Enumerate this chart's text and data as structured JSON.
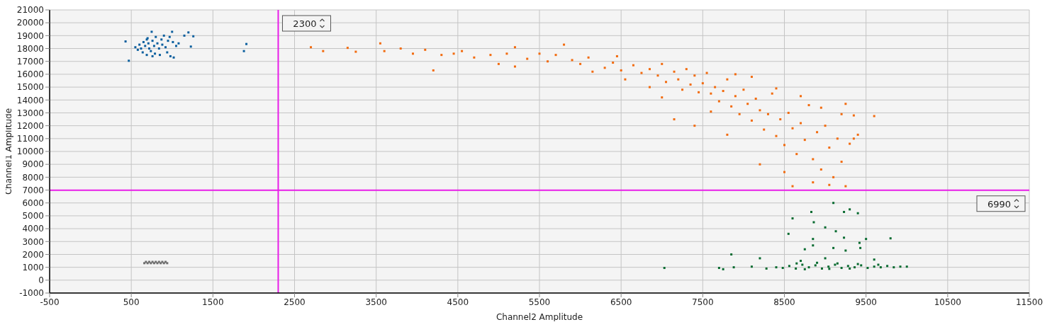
{
  "chart_data": {
    "type": "scatter",
    "xlabel": "Channel2 Amplitude",
    "ylabel": "Channel1 Amplitude",
    "xlim": [
      -500,
      11500
    ],
    "xticks": [
      -500,
      500,
      1500,
      2500,
      3500,
      4500,
      5500,
      6500,
      7500,
      8500,
      9500,
      10500,
      11500
    ],
    "ylim": [
      -1000,
      21000
    ],
    "yticks": [
      -1000,
      0,
      1000,
      2000,
      3000,
      4000,
      5000,
      6000,
      7000,
      8000,
      9000,
      10000,
      11000,
      12000,
      13000,
      14000,
      15000,
      16000,
      17000,
      18000,
      19000,
      20000,
      21000
    ],
    "grid": true,
    "marker": "square",
    "ref_lines": [
      {
        "axis": "x",
        "value": 2300,
        "label": "2300",
        "color": "#e81ee8"
      },
      {
        "axis": "y",
        "value": 6990,
        "label": "6990",
        "color": "#e81ee8"
      }
    ],
    "series": [
      {
        "color": "#0b5f9e",
        "x": [
          430,
          470,
          550,
          580,
          600,
          620,
          640,
          650,
          670,
          690,
          700,
          710,
          720,
          740,
          750,
          760,
          780,
          790,
          800,
          820,
          840,
          850,
          870,
          880,
          900,
          920,
          940,
          950,
          970,
          980,
          1000,
          1010,
          1020,
          1050,
          1080,
          1150,
          1200,
          1260,
          1230,
          1880,
          1910,
          760,
          690
        ],
        "values": [
          18550,
          17050,
          18100,
          17900,
          18300,
          18000,
          17700,
          18500,
          18200,
          17500,
          18800,
          18400,
          18000,
          17800,
          19300,
          18600,
          18200,
          17600,
          18900,
          18400,
          18000,
          17500,
          18700,
          18300,
          19000,
          18100,
          17700,
          18600,
          18900,
          17400,
          19300,
          18500,
          17300,
          18200,
          18400,
          19000,
          19250,
          18950,
          18150,
          17800,
          18350,
          17400,
          18700
        ]
      },
      {
        "color": "#f26b0f",
        "x": [
          2700,
          2850,
          3150,
          3250,
          3550,
          3600,
          3800,
          3950,
          4100,
          4300,
          4200,
          4450,
          4550,
          4700,
          4900,
          5000,
          5200,
          5100,
          5350,
          5500,
          5600,
          5700,
          5800,
          5900,
          6000,
          6100,
          6150,
          6300,
          6400,
          6500,
          6550,
          6650,
          6750,
          6850,
          6950,
          7000,
          7050,
          7150,
          7200,
          7250,
          7300,
          7350,
          7400,
          7450,
          7500,
          7550,
          7600,
          7650,
          7700,
          7750,
          7800,
          7850,
          7900,
          7950,
          8000,
          8050,
          8100,
          8150,
          8200,
          8250,
          8300,
          8350,
          8400,
          8450,
          8500,
          8550,
          8600,
          8650,
          8700,
          8750,
          8800,
          8850,
          8900,
          8950,
          9000,
          9050,
          9100,
          9150,
          9200,
          9250,
          9300,
          9350,
          9250,
          8600,
          8850,
          9400,
          9200,
          7900,
          8100,
          7000,
          7150,
          6850,
          7600,
          7800,
          9600,
          6450,
          5200,
          8400,
          8700,
          8950,
          7400,
          9350,
          8200,
          8500,
          9050
        ],
        "values": [
          18100,
          17800,
          18050,
          17750,
          18400,
          17800,
          18000,
          17600,
          17900,
          17500,
          16300,
          17600,
          17800,
          17300,
          17500,
          16800,
          18100,
          17600,
          17200,
          17600,
          17000,
          17500,
          18300,
          17100,
          16800,
          17300,
          16200,
          16500,
          16900,
          16300,
          15600,
          16700,
          16100,
          16400,
          15900,
          16800,
          15400,
          16200,
          15600,
          14800,
          16400,
          15200,
          15900,
          14600,
          15300,
          16100,
          14500,
          15000,
          13900,
          14700,
          15600,
          13500,
          14300,
          12900,
          14800,
          13700,
          12400,
          14100,
          13200,
          11700,
          12900,
          14500,
          11200,
          12500,
          10500,
          13000,
          11800,
          9800,
          12200,
          10900,
          13600,
          9400,
          11500,
          8600,
          12000,
          10300,
          8000,
          11000,
          9200,
          13700,
          10600,
          12800,
          7300,
          7300,
          7600,
          11300,
          12900,
          16000,
          15800,
          14200,
          12500,
          15000,
          13100,
          11300,
          12750,
          17400,
          16600,
          14900,
          14300,
          13400,
          12000,
          11000,
          9000,
          8400,
          7400
        ]
      },
      {
        "color": "#6e6e6e",
        "x": [
          660,
          700,
          740,
          780,
          820,
          860,
          900,
          940,
          680,
          720,
          760,
          800,
          840,
          880,
          920
        ],
        "values": [
          1320,
          1320,
          1320,
          1320,
          1320,
          1320,
          1320,
          1320,
          1420,
          1420,
          1420,
          1420,
          1420,
          1420,
          1420
        ]
      },
      {
        "color": "#086b30",
        "x": [
          7030,
          7700,
          7750,
          7850,
          7880,
          8100,
          8200,
          8280,
          8550,
          8600,
          8750,
          8850,
          8830,
          8860,
          8850,
          9000,
          9100,
          9130,
          9300,
          9230,
          9400,
          9230,
          9250,
          9420,
          9430,
          9500,
          9800,
          9100,
          8700,
          9000,
          9600,
          8400,
          8480,
          8560,
          8640,
          8720,
          8800,
          8880,
          8960,
          9040,
          9120,
          9200,
          9280,
          9360,
          9440,
          9520,
          9600,
          9680,
          9760,
          9840,
          9920,
          10000,
          8650,
          8900,
          9150,
          9400,
          9650,
          8750,
          9050,
          9300
        ],
        "values": [
          950,
          950,
          850,
          2000,
          1000,
          1050,
          1700,
          900,
          3600,
          4800,
          2400,
          2700,
          5300,
          4500,
          3200,
          4100,
          6000,
          3800,
          5500,
          5300,
          5200,
          3300,
          2300,
          2900,
          2500,
          3200,
          3250,
          2500,
          1500,
          1700,
          1600,
          1000,
          950,
          1100,
          900,
          1200,
          1000,
          1150,
          900,
          1050,
          1200,
          950,
          1100,
          1000,
          1150,
          950,
          1050,
          1000,
          1100,
          1000,
          1050,
          1050,
          1300,
          1350,
          1300,
          1250,
          1200,
          850,
          880,
          900
        ]
      }
    ]
  }
}
